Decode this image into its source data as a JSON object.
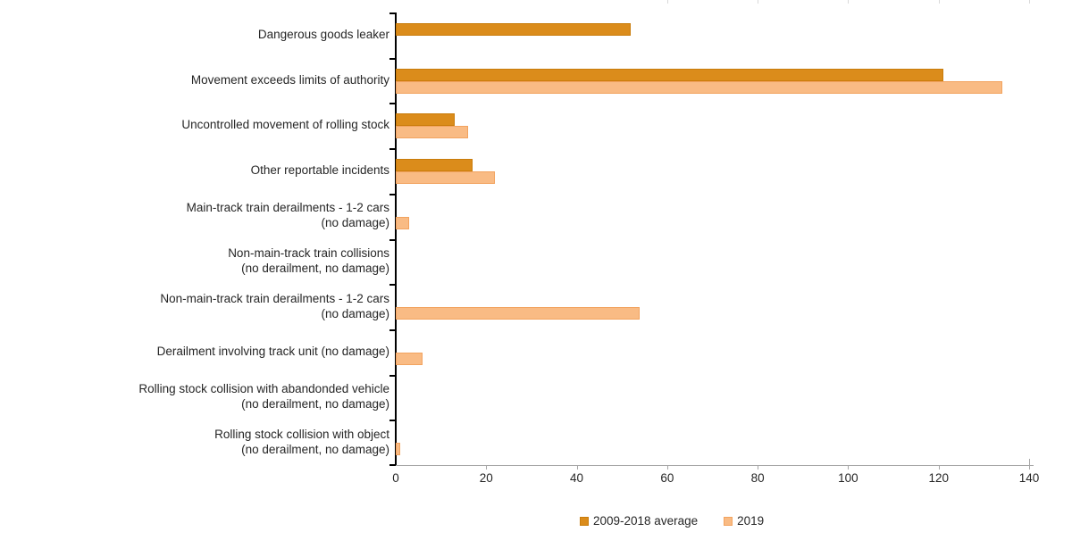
{
  "chart_data": {
    "type": "bar",
    "orientation": "horizontal",
    "title": "",
    "xlabel": "",
    "ylabel": "",
    "xlim": [
      0,
      140
    ],
    "xticks": [
      0,
      20,
      40,
      60,
      80,
      100,
      120,
      140
    ],
    "grid": false,
    "legend_position": "bottom",
    "categories": [
      "Dangerous goods leaker",
      "Movement exceeds limits of authority",
      "Uncontrolled movement of rolling stock",
      "Other reportable incidents",
      "Main-track train derailments - 1-2 cars\n(no damage)",
      "Non-main-track train collisions\n(no derailment, no damage)",
      "Non-main-track train derailments - 1-2 cars\n(no damage)",
      "Derailment involving track unit (no damage)",
      "Rolling stock collision with abandonded vehicle\n(no derailment, no damage)",
      "Rolling stock collision with object\n(no derailment, no damage)"
    ],
    "series": [
      {
        "name": "2009-2018 average",
        "color": "#DB8C1B",
        "border_color": "#C97C0B",
        "values": [
          52,
          121,
          13,
          17,
          0,
          0,
          0,
          0,
          0,
          0
        ]
      },
      {
        "name": "2019",
        "color": "#F9BB84",
        "border_color": "#F2A35F",
        "values": [
          0,
          134,
          16,
          22,
          3,
          0,
          54,
          6,
          0,
          1
        ]
      }
    ],
    "colors": {
      "axis_line": "#000000",
      "x_axis_line": "#a6a6a6",
      "text": "#262626"
    }
  }
}
